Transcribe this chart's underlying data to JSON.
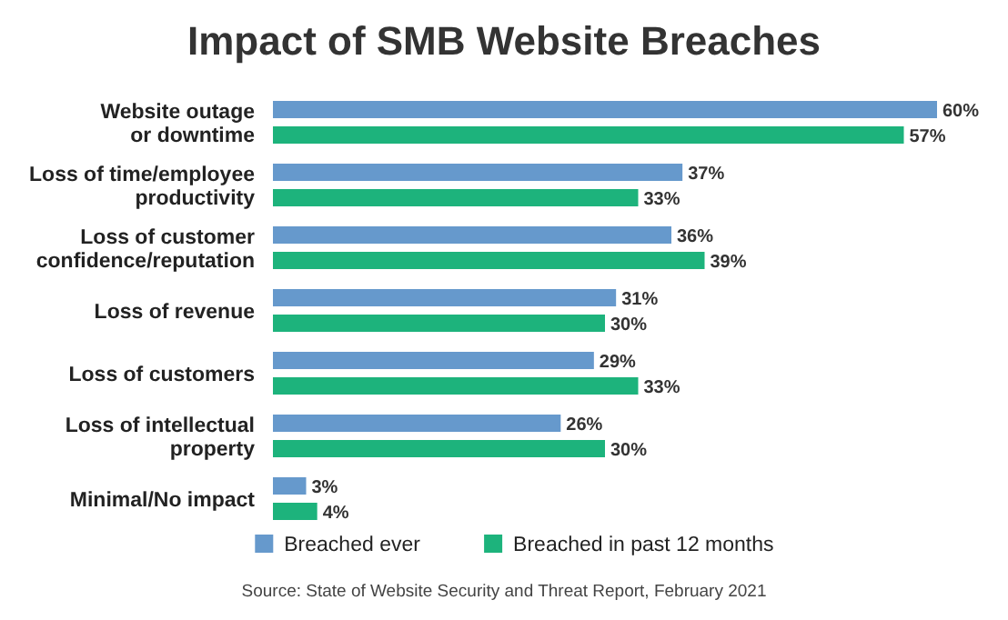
{
  "chart_data": {
    "type": "bar",
    "orientation": "horizontal",
    "title": "Impact of SMB Website Breaches",
    "categories": [
      "Website outage\nor downtime",
      "Loss of time/employee\nproductivity",
      "Loss of customer\nconfidence/reputation",
      "Loss of revenue",
      "Loss of customers",
      "Loss of intellectual\nproperty",
      "Minimal/No impact"
    ],
    "series": [
      {
        "name": "Breached ever",
        "color": "#6699cc",
        "values": [
          60,
          37,
          36,
          31,
          29,
          26,
          3
        ],
        "value_labels": [
          "60%",
          "37%",
          "36%",
          "31%",
          "29%",
          "26%",
          "3%"
        ]
      },
      {
        "name": "Breached in past 12 months",
        "color": "#1db37c",
        "values": [
          57,
          33,
          39,
          30,
          33,
          30,
          4
        ],
        "value_labels": [
          "57%",
          "33%",
          "39%",
          "30%",
          "33%",
          "30%",
          "4%"
        ]
      }
    ],
    "legend": "bottom",
    "tick_labels": "y",
    "annotations": [
      "Source: State of Website Security and Threat Report, February 2021"
    ]
  }
}
